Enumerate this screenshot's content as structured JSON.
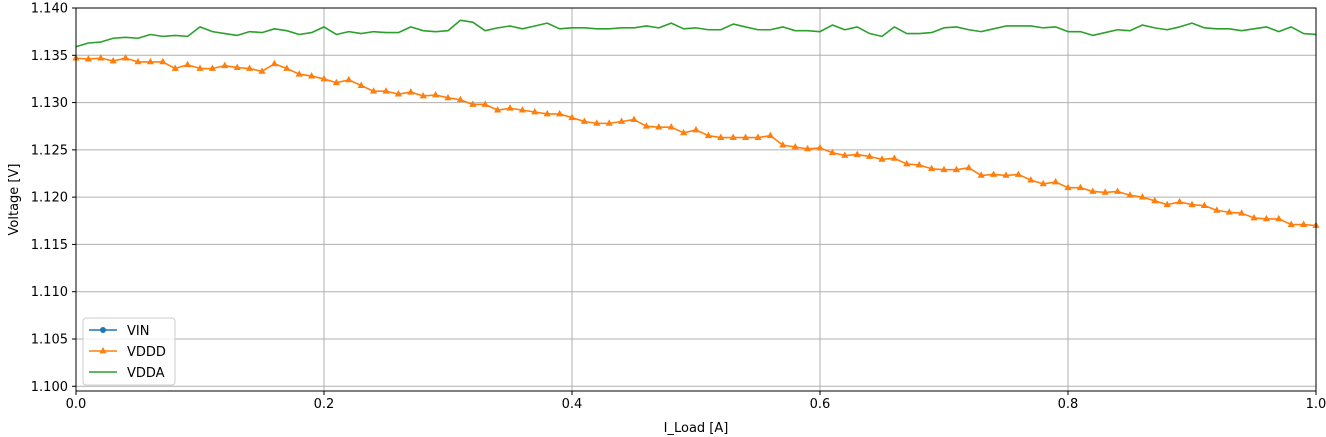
{
  "chart_data": {
    "type": "line",
    "title": "",
    "xlabel": "I_Load [A]",
    "ylabel": "Voltage [V]",
    "xlim": [
      0.0,
      1.0
    ],
    "ylim": [
      1.0995,
      1.14
    ],
    "xticks": [
      0.0,
      0.2,
      0.4,
      0.6,
      0.8,
      1.0
    ],
    "xtick_labels": [
      "0.0",
      "0.2",
      "0.4",
      "0.6",
      "0.8",
      "1.0"
    ],
    "yticks": [
      1.1,
      1.105,
      1.11,
      1.115,
      1.12,
      1.125,
      1.13,
      1.135,
      1.14
    ],
    "ytick_labels": [
      "1.100",
      "1.105",
      "1.110",
      "1.115",
      "1.120",
      "1.125",
      "1.130",
      "1.135",
      "1.140"
    ],
    "grid": true,
    "legend_position": "lower-left",
    "series": [
      {
        "name": "VIN",
        "color": "#1f77b4",
        "marker": "circle",
        "x": [],
        "values": []
      },
      {
        "name": "VDDD",
        "color": "#ff7f0e",
        "marker": "triangle",
        "x": [
          0.0,
          0.01,
          0.02,
          0.03,
          0.04,
          0.05,
          0.06,
          0.07,
          0.08,
          0.09,
          0.1,
          0.11,
          0.12,
          0.13,
          0.14,
          0.15,
          0.16,
          0.17,
          0.18,
          0.19,
          0.2,
          0.21,
          0.22,
          0.23,
          0.24,
          0.25,
          0.26,
          0.27,
          0.28,
          0.29,
          0.3,
          0.31,
          0.32,
          0.33,
          0.34,
          0.35,
          0.36,
          0.37,
          0.38,
          0.39,
          0.4,
          0.41,
          0.42,
          0.43,
          0.44,
          0.45,
          0.46,
          0.47,
          0.48,
          0.49,
          0.5,
          0.51,
          0.52,
          0.53,
          0.54,
          0.55,
          0.56,
          0.57,
          0.58,
          0.59,
          0.6,
          0.61,
          0.62,
          0.63,
          0.64,
          0.65,
          0.66,
          0.67,
          0.68,
          0.69,
          0.7,
          0.71,
          0.72,
          0.73,
          0.74,
          0.75,
          0.76,
          0.77,
          0.78,
          0.79,
          0.8,
          0.81,
          0.82,
          0.83,
          0.84,
          0.85,
          0.86,
          0.87,
          0.88,
          0.89,
          0.9,
          0.91,
          0.92,
          0.93,
          0.94,
          0.95,
          0.96,
          0.97,
          0.98,
          0.99,
          1.0
        ],
        "values": [
          1.1347,
          1.1346,
          1.1347,
          1.1344,
          1.1347,
          1.1343,
          1.1343,
          1.1343,
          1.1336,
          1.134,
          1.1336,
          1.1336,
          1.1339,
          1.1337,
          1.1336,
          1.1333,
          1.1341,
          1.1336,
          1.133,
          1.1328,
          1.1325,
          1.1321,
          1.1324,
          1.1318,
          1.1312,
          1.1312,
          1.1309,
          1.1311,
          1.1307,
          1.1308,
          1.1305,
          1.1303,
          1.1298,
          1.1298,
          1.1292,
          1.1294,
          1.1292,
          1.129,
          1.1288,
          1.1288,
          1.1284,
          1.128,
          1.1278,
          1.1278,
          1.128,
          1.1282,
          1.1275,
          1.1274,
          1.1274,
          1.1268,
          1.1271,
          1.1265,
          1.1263,
          1.1263,
          1.1263,
          1.1263,
          1.1265,
          1.1255,
          1.1253,
          1.1251,
          1.1252,
          1.1247,
          1.1244,
          1.1245,
          1.1243,
          1.124,
          1.1241,
          1.1235,
          1.1234,
          1.123,
          1.1229,
          1.1229,
          1.1231,
          1.1223,
          1.1224,
          1.1223,
          1.1224,
          1.1218,
          1.1214,
          1.1216,
          1.121,
          1.121,
          1.1206,
          1.1205,
          1.1206,
          1.1202,
          1.12,
          1.1196,
          1.1192,
          1.1195,
          1.1192,
          1.1191,
          1.1186,
          1.1184,
          1.1183,
          1.1178,
          1.1177,
          1.1177,
          1.1171,
          1.1171,
          1.117
        ]
      },
      {
        "name": "VDDA",
        "color": "#2ca02c",
        "marker": "none",
        "x": [
          0.0,
          0.01,
          0.02,
          0.03,
          0.04,
          0.05,
          0.06,
          0.07,
          0.08,
          0.09,
          0.1,
          0.11,
          0.12,
          0.13,
          0.14,
          0.15,
          0.16,
          0.17,
          0.18,
          0.19,
          0.2,
          0.21,
          0.22,
          0.23,
          0.24,
          0.25,
          0.26,
          0.27,
          0.28,
          0.29,
          0.3,
          0.31,
          0.32,
          0.33,
          0.34,
          0.35,
          0.36,
          0.37,
          0.38,
          0.39,
          0.4,
          0.41,
          0.42,
          0.43,
          0.44,
          0.45,
          0.46,
          0.47,
          0.48,
          0.49,
          0.5,
          0.51,
          0.52,
          0.53,
          0.54,
          0.55,
          0.56,
          0.57,
          0.58,
          0.59,
          0.6,
          0.61,
          0.62,
          0.63,
          0.64,
          0.65,
          0.66,
          0.67,
          0.68,
          0.69,
          0.7,
          0.71,
          0.72,
          0.73,
          0.74,
          0.75,
          0.76,
          0.77,
          0.78,
          0.79,
          0.8,
          0.81,
          0.82,
          0.83,
          0.84,
          0.85,
          0.86,
          0.87,
          0.88,
          0.89,
          0.9,
          0.91,
          0.92,
          0.93,
          0.94,
          0.95,
          0.96,
          0.97,
          0.98,
          0.99,
          1.0
        ],
        "values": [
          1.1359,
          1.1363,
          1.1364,
          1.1368,
          1.1369,
          1.1368,
          1.1372,
          1.137,
          1.1371,
          1.137,
          1.138,
          1.1375,
          1.1373,
          1.1371,
          1.1375,
          1.1374,
          1.1378,
          1.1376,
          1.1372,
          1.1374,
          1.138,
          1.1372,
          1.1375,
          1.1373,
          1.1375,
          1.1374,
          1.1374,
          1.138,
          1.1376,
          1.1375,
          1.1376,
          1.1387,
          1.1385,
          1.1376,
          1.1379,
          1.1381,
          1.1378,
          1.1381,
          1.1384,
          1.1378,
          1.1379,
          1.1379,
          1.1378,
          1.1378,
          1.1379,
          1.1379,
          1.1381,
          1.1379,
          1.1384,
          1.1378,
          1.1379,
          1.1377,
          1.1377,
          1.1383,
          1.138,
          1.1377,
          1.1377,
          1.138,
          1.1376,
          1.1376,
          1.1375,
          1.1382,
          1.1377,
          1.138,
          1.1373,
          1.137,
          1.138,
          1.1373,
          1.1373,
          1.1374,
          1.1379,
          1.138,
          1.1377,
          1.1375,
          1.1378,
          1.1381,
          1.1381,
          1.1381,
          1.1379,
          1.138,
          1.1375,
          1.1375,
          1.1371,
          1.1374,
          1.1377,
          1.1376,
          1.1382,
          1.1379,
          1.1377,
          1.138,
          1.1384,
          1.1379,
          1.1378,
          1.1378,
          1.1376,
          1.1378,
          1.138,
          1.1375,
          1.138,
          1.1373,
          1.1372
        ]
      }
    ]
  }
}
